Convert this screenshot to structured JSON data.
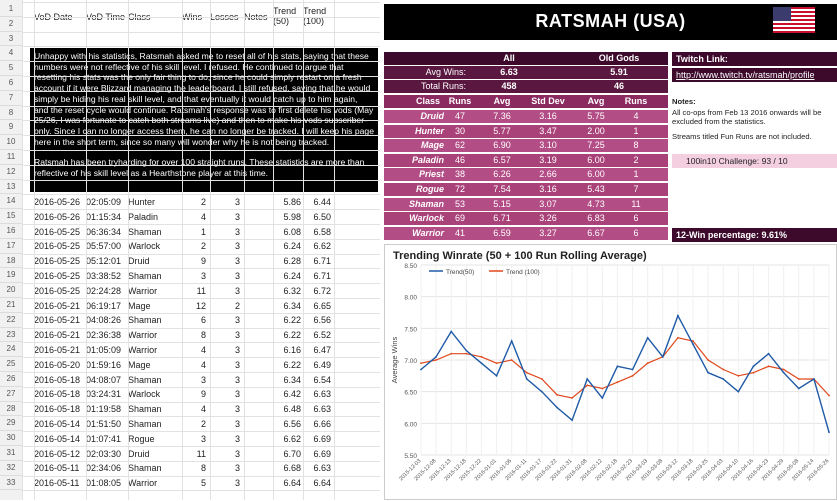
{
  "sheet": {
    "row_numbers": [
      "1",
      "2",
      "3",
      "4",
      "5",
      "6",
      "7",
      "8",
      "9",
      "10",
      "11",
      "12",
      "13",
      "14",
      "15",
      "16",
      "17",
      "18",
      "19",
      "20",
      "21",
      "22",
      "23",
      "24",
      "25",
      "26",
      "27",
      "28",
      "29",
      "30",
      "31",
      "32",
      "33"
    ],
    "columns": {
      "date": "VoD Date",
      "time": "VoD Time",
      "class": "Class",
      "wins": "Wins",
      "losses": "Losses",
      "notes": "Notes",
      "trend50": "Trend (50)",
      "trend100": "Trend (100)"
    },
    "notice": [
      "Unhappy with his statistics, Ratsmah asked me to reset all of his stats, saying that these numbers were not reflective of his skill level. I refused. He continued to argue that resetting his stats was the only fair thing to do, since he could simply restart on a fresh account if it were Blizzard managing the leaderboard. I still refused, saying that he would simply be hiding his real skill level, and that eventually it would catch up to him again, and the reset cycle would continue. Ratsmah's response was to first delete his vods (May 25/26, I was fortunate to catch both streams live) and then to make his vods subscriber-only. Since I can no longer access them, he can no longer be tracked. I will keep his page here in the short term, since so many will wonder why he is not being tracked.",
      "Ratsmah has been tryharding for over 100 straight runs. These statistics are more than reflective of his skill level as a Hearthstone player at this time."
    ],
    "rows": [
      {
        "n": "14",
        "date": "2016-05-26",
        "time": "02:05:09",
        "class": "Hunter",
        "wins": "2",
        "losses": "3",
        "t50": "5.86",
        "t100": "6.44"
      },
      {
        "n": "15",
        "date": "2016-05-26",
        "time": "01:15:34",
        "class": "Paladin",
        "wins": "4",
        "losses": "3",
        "t50": "5.98",
        "t100": "6.50"
      },
      {
        "n": "16",
        "date": "2016-05-25",
        "time": "06:36:34",
        "class": "Shaman",
        "wins": "1",
        "losses": "3",
        "t50": "6.08",
        "t100": "6.58"
      },
      {
        "n": "17",
        "date": "2016-05-25",
        "time": "05:57:00",
        "class": "Warlock",
        "wins": "2",
        "losses": "3",
        "t50": "6.24",
        "t100": "6.62"
      },
      {
        "n": "18",
        "date": "2016-05-25",
        "time": "05:12:01",
        "class": "Druid",
        "wins": "9",
        "losses": "3",
        "t50": "6.28",
        "t100": "6.71"
      },
      {
        "n": "19",
        "date": "2016-05-25",
        "time": "03:38:52",
        "class": "Shaman",
        "wins": "3",
        "losses": "3",
        "t50": "6.24",
        "t100": "6.71"
      },
      {
        "n": "20",
        "date": "2016-05-25",
        "time": "02:24:28",
        "class": "Warrior",
        "wins": "11",
        "losses": "3",
        "t50": "6.32",
        "t100": "6.72"
      },
      {
        "n": "21",
        "date": "2016-05-21",
        "time": "06:19:17",
        "class": "Mage",
        "wins": "12",
        "losses": "2",
        "t50": "6.34",
        "t100": "6.65"
      },
      {
        "n": "22",
        "date": "2016-05-21",
        "time": "04:08:26",
        "class": "Shaman",
        "wins": "6",
        "losses": "3",
        "t50": "6.22",
        "t100": "6.56"
      },
      {
        "n": "23",
        "date": "2016-05-21",
        "time": "02:36:38",
        "class": "Warrior",
        "wins": "8",
        "losses": "3",
        "t50": "6.22",
        "t100": "6.52"
      },
      {
        "n": "24",
        "date": "2016-05-21",
        "time": "01:05:09",
        "class": "Warrior",
        "wins": "4",
        "losses": "3",
        "t50": "6.16",
        "t100": "6.47"
      },
      {
        "n": "25",
        "date": "2016-05-20",
        "time": "01:59:16",
        "class": "Mage",
        "wins": "4",
        "losses": "3",
        "t50": "6.22",
        "t100": "6.49"
      },
      {
        "n": "26",
        "date": "2016-05-18",
        "time": "04:08:07",
        "class": "Shaman",
        "wins": "3",
        "losses": "3",
        "t50": "6.34",
        "t100": "6.54"
      },
      {
        "n": "27",
        "date": "2016-05-18",
        "time": "03:24:31",
        "class": "Warlock",
        "wins": "9",
        "losses": "3",
        "t50": "6.42",
        "t100": "6.63"
      },
      {
        "n": "28",
        "date": "2016-05-18",
        "time": "01:19:58",
        "class": "Shaman",
        "wins": "4",
        "losses": "3",
        "t50": "6.48",
        "t100": "6.63"
      },
      {
        "n": "29",
        "date": "2016-05-14",
        "time": "01:51:50",
        "class": "Shaman",
        "wins": "2",
        "losses": "3",
        "t50": "6.56",
        "t100": "6.66"
      },
      {
        "n": "30",
        "date": "2016-05-14",
        "time": "01:07:41",
        "class": "Rogue",
        "wins": "3",
        "losses": "3",
        "t50": "6.62",
        "t100": "6.69"
      },
      {
        "n": "31",
        "date": "2016-05-12",
        "time": "02:03:30",
        "class": "Druid",
        "wins": "11",
        "losses": "3",
        "t50": "6.70",
        "t100": "6.69"
      },
      {
        "n": "32",
        "date": "2016-05-11",
        "time": "02:34:06",
        "class": "Shaman",
        "wins": "8",
        "losses": "3",
        "t50": "6.68",
        "t100": "6.63"
      },
      {
        "n": "33",
        "date": "2016-05-11",
        "time": "01:08:05",
        "class": "Warrior",
        "wins": "5",
        "losses": "3",
        "t50": "6.64",
        "t100": "6.64"
      }
    ]
  },
  "panel": {
    "title": "RATSMAH (USA)",
    "all_label": "All",
    "oldgods_label": "Old Gods",
    "avg_wins_label": "Avg Wins:",
    "total_runs_label": "Total Runs:",
    "all_avg": "6.63",
    "all_runs": "458",
    "og_avg": "5.91",
    "og_runs": "46",
    "class_headers": [
      "Class",
      "Runs",
      "Avg",
      "Std Dev",
      "Avg",
      "Runs"
    ],
    "classes": [
      {
        "name": "Druid",
        "runs": "47",
        "avg": "7.36",
        "sd": "3.16",
        "og_avg": "5.75",
        "og_runs": "4"
      },
      {
        "name": "Hunter",
        "runs": "30",
        "avg": "5.77",
        "sd": "3.47",
        "og_avg": "2.00",
        "og_runs": "1"
      },
      {
        "name": "Mage",
        "runs": "62",
        "avg": "6.90",
        "sd": "3.10",
        "og_avg": "7.25",
        "og_runs": "8"
      },
      {
        "name": "Paladin",
        "runs": "46",
        "avg": "6.57",
        "sd": "3.19",
        "og_avg": "6.00",
        "og_runs": "2"
      },
      {
        "name": "Priest",
        "runs": "38",
        "avg": "6.26",
        "sd": "2.66",
        "og_avg": "6.00",
        "og_runs": "1"
      },
      {
        "name": "Rogue",
        "runs": "72",
        "avg": "7.54",
        "sd": "3.16",
        "og_avg": "5.43",
        "og_runs": "7"
      },
      {
        "name": "Shaman",
        "runs": "53",
        "avg": "5.15",
        "sd": "3.07",
        "og_avg": "4.73",
        "og_runs": "11"
      },
      {
        "name": "Warlock",
        "runs": "69",
        "avg": "6.71",
        "sd": "3.26",
        "og_avg": "6.83",
        "og_runs": "6"
      },
      {
        "name": "Warrior",
        "runs": "41",
        "avg": "6.59",
        "sd": "3.27",
        "og_avg": "6.67",
        "og_runs": "6"
      }
    ],
    "twitch_label": "Twitch Link:",
    "twitch_url": "http://www.twitch.tv/ratsmah/profile",
    "notes_label": "Notes:",
    "notes_1": "All co-ops from Feb 13 2016 onwards will be excluded from the statistics.",
    "notes_2": "Streams titled Fun Runs are not included.",
    "challenge": "100in10 Challenge:   93 / 10",
    "twelve_win": "12-Win percentage:  9.61%",
    "colors": {
      "dark_row": "#3d0a2c",
      "mid_row": "#5a1840",
      "class_row": "#8a2a60",
      "body_row": "#b24d85",
      "pink_cell": "#f3cfe0",
      "t50": "#1f5aa6",
      "t100": "#e0481c"
    }
  },
  "chart_data": {
    "type": "line",
    "title": "Trending Winrate (50 + 100 Run Rolling Average)",
    "xlabel": "",
    "ylabel": "Average Wins",
    "ylim": [
      5.5,
      8.5
    ],
    "yticks": [
      "5.50",
      "6.00",
      "6.50",
      "7.00",
      "7.50",
      "8.00",
      "8.50"
    ],
    "legend_position": "top-left",
    "x": [
      "2015-12-03",
      "2015-12-08",
      "2015-12-13",
      "2015-12-18",
      "2015-12-22",
      "2016-01-01",
      "2016-01-06",
      "2016-01-11",
      "2016-01-17",
      "2016-01-22",
      "2016-01-31",
      "2016-02-08",
      "2016-02-12",
      "2016-02-18",
      "2016-02-23",
      "2016-03-03",
      "2016-03-08",
      "2016-03-12",
      "2016-03-18",
      "2016-03-25",
      "2016-04-03",
      "2016-04-10",
      "2016-04-16",
      "2016-04-23",
      "2016-04-29",
      "2016-05-08",
      "2016-05-14",
      "2016-05-26"
    ],
    "series": [
      {
        "name": "Trend(50)",
        "values": [
          6.85,
          7.05,
          7.45,
          7.15,
          6.95,
          6.75,
          7.3,
          6.7,
          6.5,
          6.25,
          6.05,
          6.7,
          6.4,
          6.9,
          6.85,
          7.35,
          7.05,
          7.7,
          7.25,
          6.8,
          6.7,
          6.5,
          6.9,
          7.1,
          6.8,
          6.55,
          6.7,
          5.86
        ]
      },
      {
        "name": "Trend (100)",
        "values": [
          6.95,
          7.0,
          7.1,
          7.1,
          7.05,
          6.95,
          7.0,
          6.8,
          6.7,
          6.45,
          6.4,
          6.6,
          6.55,
          6.65,
          6.75,
          6.95,
          7.05,
          7.35,
          7.3,
          7.0,
          6.85,
          6.75,
          6.8,
          6.9,
          6.85,
          6.7,
          6.7,
          6.44
        ]
      }
    ]
  }
}
